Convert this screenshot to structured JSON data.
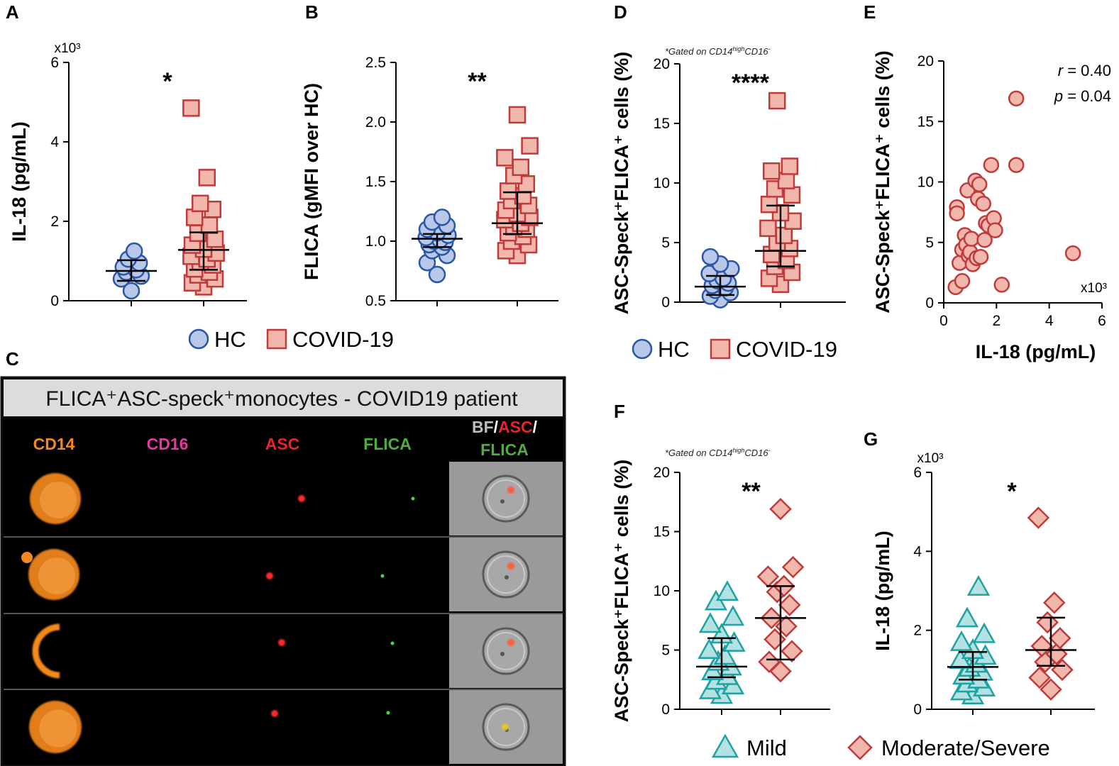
{
  "colors": {
    "hc_fill": "#b9c8e8",
    "hc_stroke": "#2a56a6",
    "covid_fill": "#f2b7ac",
    "covid_stroke": "#c03a3a",
    "mild_fill": "#b4e2e2",
    "mild_stroke": "#1ea2a2"
  },
  "legends": {
    "hc_covid": [
      "HC",
      "COVID-19"
    ],
    "severity": [
      "Mild",
      "Moderate/Severe"
    ]
  },
  "gating_note": {
    "prefix": "*Gated on CD14",
    "sup1": "high",
    "mid": "CD16",
    "sup2": "-"
  },
  "imaging_panel": {
    "letter": "C",
    "title": "FLICA⁺ASC-speck⁺monocytes - COVID19 patient",
    "channels": [
      "CD14",
      "CD16",
      "ASC",
      "FLICA"
    ],
    "merge_label": [
      "BF",
      "/",
      "ASC",
      "/",
      "FLICA"
    ],
    "channel_colors": [
      "#f5891f",
      "#e23aa0",
      "#e8242a",
      "#4caf3c"
    ]
  },
  "chart_data": [
    {
      "id": "A",
      "type": "scatter",
      "plot": "dot-plot",
      "title": "",
      "ylabel": "IL-18 (pg/mL)",
      "y_multiplier": "x10³",
      "ylim": [
        0,
        6
      ],
      "yticks": [
        "0",
        "2",
        "4",
        "6"
      ],
      "significance": "*",
      "groups": [
        {
          "name": "HC",
          "values": [
            0.25,
            0.55,
            0.62,
            0.72,
            0.78,
            0.85,
            0.95,
            1.05,
            1.25
          ],
          "median": 0.75,
          "iqr": [
            0.5,
            1.02
          ]
        },
        {
          "name": "COVID-19",
          "values": [
            0.35,
            0.45,
            0.55,
            0.65,
            0.72,
            0.8,
            0.9,
            0.98,
            1.05,
            1.12,
            1.2,
            1.3,
            1.4,
            1.55,
            1.7,
            1.9,
            2.1,
            2.3,
            2.45,
            3.1,
            4.85
          ],
          "median": 1.28,
          "iqr": [
            0.78,
            1.72
          ]
        }
      ]
    },
    {
      "id": "B",
      "type": "scatter",
      "plot": "dot-plot",
      "title": "",
      "ylabel": "FLICA (gMFI over HC)",
      "ylim": [
        0.5,
        2.5
      ],
      "yticks": [
        "0.5",
        "1.0",
        "1.5",
        "2.0",
        "2.5"
      ],
      "significance": "**",
      "groups": [
        {
          "name": "HC",
          "values": [
            0.72,
            0.82,
            0.88,
            0.92,
            0.95,
            0.97,
            0.99,
            1.0,
            1.01,
            1.03,
            1.05,
            1.07,
            1.1,
            1.13,
            1.16,
            1.2
          ],
          "median": 1.02,
          "iqr": [
            0.95,
            1.06
          ]
        },
        {
          "name": "COVID-19",
          "values": [
            0.88,
            0.92,
            0.97,
            1.0,
            1.04,
            1.07,
            1.1,
            1.12,
            1.15,
            1.18,
            1.2,
            1.23,
            1.26,
            1.3,
            1.34,
            1.38,
            1.42,
            1.48,
            1.55,
            1.62,
            1.7,
            1.8,
            2.06
          ],
          "median": 1.15,
          "iqr": [
            1.06,
            1.41
          ]
        }
      ]
    },
    {
      "id": "D",
      "type": "scatter",
      "plot": "dot-plot",
      "title": "",
      "ylabel": "ASC-Speck⁺FLICA⁺ cells (%)",
      "ylim": [
        0,
        20
      ],
      "yticks": [
        "0",
        "5",
        "10",
        "15",
        "20"
      ],
      "significance": "****",
      "groups": [
        {
          "name": "HC",
          "values": [
            0.2,
            0.5,
            0.8,
            1.0,
            1.2,
            1.4,
            1.6,
            1.8,
            2.0,
            2.4,
            2.8,
            3.2,
            3.8
          ],
          "median": 1.3,
          "iqr": [
            0.6,
            2.2
          ]
        },
        {
          "name": "COVID-19",
          "values": [
            1.5,
            2.0,
            2.5,
            3.0,
            3.5,
            4.0,
            4.5,
            5.0,
            5.6,
            6.2,
            6.8,
            7.5,
            8.2,
            9.0,
            9.5,
            10.2,
            11.0,
            11.4,
            16.9
          ],
          "median": 4.3,
          "iqr": [
            3.0,
            8.1
          ]
        }
      ]
    },
    {
      "id": "E",
      "type": "scatter",
      "plot": "correlation",
      "title": "",
      "xlabel": "IL-18 (pg/mL)",
      "x_multiplier": "x10³",
      "ylabel": "ASC-Speck⁺FLICA⁺ cells (%)",
      "xlim": [
        0,
        6
      ],
      "ylim": [
        0,
        20
      ],
      "xticks": [
        "0",
        "2",
        "4",
        "6"
      ],
      "yticks": [
        "0",
        "5",
        "10",
        "15",
        "20"
      ],
      "stat_r": {
        "symbol": "r",
        "text": " = 0.40"
      },
      "stat_p": {
        "symbol": "p",
        "text": " = 0.04"
      },
      "x": [
        0.45,
        0.5,
        0.5,
        0.6,
        0.7,
        0.7,
        0.8,
        0.85,
        0.9,
        0.95,
        1.0,
        1.05,
        1.1,
        1.2,
        1.25,
        1.3,
        1.35,
        1.4,
        1.5,
        1.55,
        1.6,
        1.7,
        1.8,
        1.9,
        1.95,
        2.2,
        2.75,
        4.9
      ],
      "y": [
        1.3,
        7.9,
        7.4,
        3.3,
        4.4,
        1.8,
        5.6,
        4.8,
        9.3,
        3.9,
        4.2,
        5.3,
        3.2,
        10.1,
        3.7,
        8.6,
        9.8,
        3.8,
        8.2,
        5.2,
        6.6,
        6.4,
        11.4,
        7.0,
        6.0,
        1.5,
        11.4,
        4.1
      ],
      "highlight": {
        "x": 2.75,
        "y": 16.9
      }
    },
    {
      "id": "F",
      "type": "scatter",
      "plot": "dot-plot",
      "title": "",
      "ylabel": "ASC-Speck⁺FLICA⁺ cells (%)",
      "ylim": [
        0,
        20
      ],
      "yticks": [
        "0",
        "5",
        "10",
        "15",
        "20"
      ],
      "significance": "**",
      "groups": [
        {
          "name": "Mild",
          "values": [
            1.2,
            1.6,
            2.0,
            2.4,
            2.8,
            3.2,
            3.6,
            4.0,
            4.5,
            5.0,
            5.6,
            6.3,
            7.2,
            7.8,
            9.1,
            9.9
          ],
          "median": 3.6,
          "iqr": [
            2.7,
            6.0
          ]
        },
        {
          "name": "Moderate/Severe",
          "values": [
            3.2,
            4.0,
            4.9,
            5.9,
            7.0,
            7.7,
            8.8,
            9.9,
            10.4,
            11.2,
            12.0,
            16.9
          ],
          "median": 7.7,
          "iqr": [
            4.2,
            10.4
          ]
        }
      ]
    },
    {
      "id": "G",
      "type": "scatter",
      "plot": "dot-plot",
      "title": "",
      "ylabel": "IL-18 (pg/mL)",
      "y_multiplier": "x10³",
      "ylim": [
        0,
        6
      ],
      "yticks": [
        "0",
        "2",
        "4",
        "6"
      ],
      "significance": "*",
      "groups": [
        {
          "name": "Mild",
          "values": [
            0.35,
            0.45,
            0.55,
            0.65,
            0.75,
            0.85,
            0.95,
            1.05,
            1.15,
            1.25,
            1.35,
            1.5,
            1.7,
            1.9,
            2.3,
            3.1
          ],
          "median": 1.07,
          "iqr": [
            0.75,
            1.45
          ]
        },
        {
          "name": "Moderate/Severe",
          "values": [
            0.5,
            0.8,
            1.0,
            1.2,
            1.4,
            1.6,
            1.8,
            2.2,
            2.7,
            4.85
          ],
          "median": 1.5,
          "iqr": [
            1.1,
            2.32
          ]
        }
      ]
    }
  ]
}
